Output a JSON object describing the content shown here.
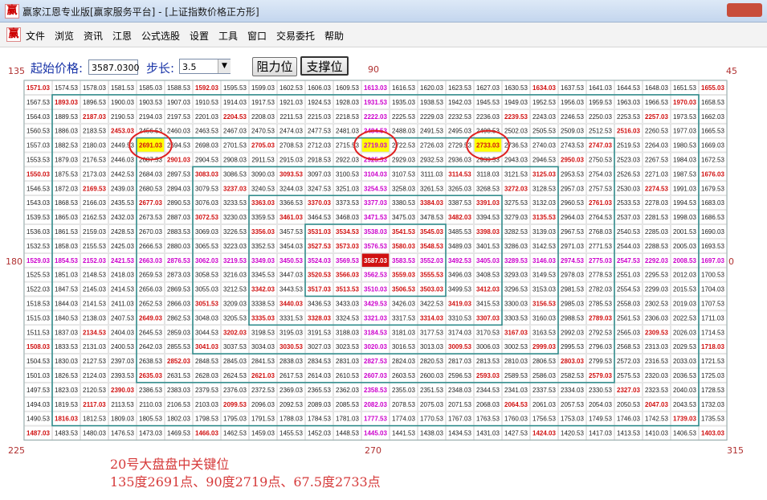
{
  "window": {
    "icon": "赢",
    "title": "赢家江恩专业版[赢家服务平台] - [上证指数价格正方形]"
  },
  "menu": [
    "文件",
    "浏览",
    "资讯",
    "江恩",
    "公式选股",
    "设置",
    "工具",
    "窗口",
    "交易委托",
    "帮助"
  ],
  "toolbar": {
    "start_label": "起始价格:",
    "start_value": "3587.0300",
    "step_label": "步长:",
    "step_value": "3.5",
    "buttons": [
      "阻力位",
      "支撑位"
    ]
  },
  "angle_labels": [
    "135",
    "90",
    "45",
    "180",
    "0",
    "225",
    "270",
    "315"
  ],
  "grid": {
    "rows": [
      [
        1571.03,
        1574.53,
        1578.03,
        1581.53,
        1585.03,
        1588.53,
        1592.03,
        1595.53,
        1599.03,
        1602.53,
        1606.03,
        1609.53,
        1613.03,
        1616.53,
        1620.03,
        1623.53,
        1627.03,
        1630.53,
        1634.03,
        1637.53,
        1641.03,
        1644.53,
        1648.03,
        1651.53,
        1655.03
      ],
      [
        1567.53,
        1893.03,
        1896.53,
        1900.03,
        1903.53,
        1907.03,
        1910.53,
        1914.03,
        1917.53,
        1921.03,
        1924.53,
        1928.03,
        1931.53,
        1935.03,
        1938.53,
        1942.03,
        1945.53,
        1949.03,
        1952.53,
        1956.03,
        1959.53,
        1963.03,
        1966.53,
        1970.03,
        1658.53
      ],
      [
        1564.03,
        1889.53,
        2187.03,
        2190.53,
        2194.03,
        2197.53,
        2201.03,
        2204.53,
        2208.03,
        2211.53,
        2215.03,
        2218.53,
        2222.03,
        2225.53,
        2229.03,
        2232.53,
        2236.03,
        2239.53,
        2243.03,
        2246.53,
        2250.03,
        2253.53,
        2257.03,
        1973.53,
        1662.03
      ],
      [
        1560.53,
        1886.03,
        2183.53,
        2453.03,
        2456.53,
        2460.03,
        2463.53,
        2467.03,
        2470.53,
        2474.03,
        2477.53,
        2481.03,
        2484.53,
        2488.03,
        2491.53,
        2495.03,
        2498.53,
        2502.03,
        2505.53,
        2509.03,
        2512.53,
        2516.03,
        2260.53,
        1977.03,
        1665.53
      ],
      [
        1557.03,
        1882.53,
        2180.03,
        2449.53,
        2691.03,
        2694.53,
        2698.03,
        2701.53,
        2705.03,
        2708.53,
        2712.03,
        2715.53,
        2719.03,
        2722.53,
        2726.03,
        2729.53,
        2733.03,
        2736.53,
        2740.03,
        2743.53,
        2747.03,
        2519.53,
        2264.03,
        1980.53,
        1669.03
      ],
      [
        1553.53,
        1879.03,
        2176.53,
        2446.03,
        2687.53,
        2901.03,
        2904.53,
        2908.03,
        2911.53,
        2915.03,
        2918.53,
        2922.03,
        2925.53,
        2929.03,
        2932.53,
        2936.03,
        2939.53,
        2943.03,
        2946.53,
        2950.03,
        2750.53,
        2523.03,
        2267.53,
        1984.03,
        1672.53
      ],
      [
        1550.03,
        1875.53,
        2173.03,
        2442.53,
        2684.03,
        2897.53,
        3083.03,
        3086.53,
        3090.03,
        3093.53,
        3097.03,
        3100.53,
        3104.03,
        3107.53,
        3111.03,
        3114.53,
        3118.03,
        3121.53,
        3125.03,
        2953.53,
        2754.03,
        2526.53,
        2271.03,
        1987.53,
        1676.03
      ],
      [
        1546.53,
        1872.03,
        2169.53,
        2439.03,
        2680.53,
        2894.03,
        3079.53,
        3237.03,
        3240.53,
        3244.03,
        3247.53,
        3251.03,
        3254.53,
        3258.03,
        3261.53,
        3265.03,
        3268.53,
        3272.03,
        3128.53,
        2957.03,
        2757.53,
        2530.03,
        2274.53,
        1991.03,
        1679.53
      ],
      [
        1543.03,
        1868.53,
        2166.03,
        2435.53,
        2677.03,
        2890.53,
        3076.03,
        3233.53,
        3363.03,
        3366.53,
        3370.03,
        3373.53,
        3377.03,
        3380.53,
        3384.03,
        3387.53,
        3391.03,
        3275.53,
        3132.03,
        2960.53,
        2761.03,
        2533.53,
        2278.03,
        1994.53,
        1683.03
      ],
      [
        1539.53,
        1865.03,
        2162.53,
        2432.03,
        2673.53,
        2887.03,
        3072.53,
        3230.03,
        3359.53,
        3461.03,
        3464.53,
        3468.03,
        3471.53,
        3475.03,
        3478.53,
        3482.03,
        3394.53,
        3279.03,
        3135.53,
        2964.03,
        2764.53,
        2537.03,
        2281.53,
        1998.03,
        1686.53
      ],
      [
        1536.03,
        1861.53,
        2159.03,
        2428.53,
        2670.03,
        2883.53,
        3069.03,
        3226.53,
        3356.03,
        3457.53,
        3531.03,
        3534.53,
        3538.03,
        3541.53,
        3545.03,
        3485.53,
        3398.03,
        3282.53,
        3139.03,
        2967.53,
        2768.03,
        2540.53,
        2285.03,
        2001.53,
        1690.03
      ],
      [
        1532.53,
        1858.03,
        2155.53,
        2425.03,
        2666.53,
        2880.03,
        3065.53,
        3223.03,
        3352.53,
        3454.03,
        3527.53,
        3573.03,
        3576.53,
        3580.03,
        3548.53,
        3489.03,
        3401.53,
        3286.03,
        3142.53,
        2971.03,
        2771.53,
        2544.03,
        2288.53,
        2005.03,
        1693.53
      ],
      [
        1529.03,
        1854.53,
        2152.03,
        2421.53,
        2663.03,
        2876.53,
        3062.03,
        3219.53,
        3349.03,
        3450.53,
        3524.03,
        3569.53,
        3587.03,
        3583.53,
        3552.03,
        3492.53,
        3405.03,
        3289.53,
        3146.03,
        2974.53,
        2775.03,
        2547.53,
        2292.03,
        2008.53,
        1697.03
      ],
      [
        1525.53,
        1851.03,
        2148.53,
        2418.03,
        2659.53,
        2873.03,
        3058.53,
        3216.03,
        3345.53,
        3447.03,
        3520.53,
        3566.03,
        3562.53,
        3559.03,
        3555.53,
        3496.03,
        3408.53,
        3293.03,
        3149.53,
        2978.03,
        2778.53,
        2551.03,
        2295.53,
        2012.03,
        1700.53
      ],
      [
        1522.03,
        1847.53,
        2145.03,
        2414.53,
        2656.03,
        2869.53,
        3055.03,
        3212.53,
        3342.03,
        3443.53,
        3517.03,
        3513.53,
        3510.03,
        3506.53,
        3503.03,
        3499.53,
        3412.03,
        3296.53,
        3153.03,
        2981.53,
        2782.03,
        2554.53,
        2299.03,
        2015.53,
        1704.03
      ],
      [
        1518.53,
        1844.03,
        2141.53,
        2411.03,
        2652.53,
        2866.03,
        3051.53,
        3209.03,
        3338.53,
        3440.03,
        3436.53,
        3433.03,
        3429.53,
        3426.03,
        3422.53,
        3419.03,
        3415.53,
        3300.03,
        3156.53,
        2985.03,
        2785.53,
        2558.03,
        2302.53,
        2019.03,
        1707.53
      ],
      [
        1515.03,
        1840.53,
        2138.03,
        2407.53,
        2649.03,
        2862.53,
        3048.03,
        3205.53,
        3335.03,
        3331.53,
        3328.03,
        3324.53,
        3321.03,
        3317.53,
        3314.03,
        3310.53,
        3307.03,
        3303.53,
        3160.03,
        2988.53,
        2789.03,
        2561.53,
        2306.03,
        2022.53,
        1711.03
      ],
      [
        1511.53,
        1837.03,
        2134.53,
        2404.03,
        2645.53,
        2859.03,
        3044.53,
        3202.03,
        3198.53,
        3195.03,
        3191.53,
        3188.03,
        3184.53,
        3181.03,
        3177.53,
        3174.03,
        3170.53,
        3167.03,
        3163.53,
        2992.03,
        2792.53,
        2565.03,
        2309.53,
        2026.03,
        1714.53
      ],
      [
        1508.03,
        1833.53,
        2131.03,
        2400.53,
        2642.03,
        2855.53,
        3041.03,
        3037.53,
        3034.03,
        3030.53,
        3027.03,
        3023.53,
        3020.03,
        3016.53,
        3013.03,
        3009.53,
        3006.03,
        3002.53,
        2999.03,
        2995.53,
        2796.03,
        2568.53,
        2313.03,
        2029.53,
        1718.03
      ],
      [
        1504.53,
        1830.03,
        2127.53,
        2397.03,
        2638.53,
        2852.03,
        2848.53,
        2845.03,
        2841.53,
        2838.03,
        2834.53,
        2831.03,
        2827.53,
        2824.03,
        2820.53,
        2817.03,
        2813.53,
        2810.03,
        2806.53,
        2803.03,
        2799.53,
        2572.03,
        2316.53,
        2033.03,
        1721.53
      ],
      [
        1501.03,
        1826.53,
        2124.03,
        2393.53,
        2635.03,
        2631.53,
        2628.03,
        2624.53,
        2621.03,
        2617.53,
        2614.03,
        2610.53,
        2607.03,
        2603.53,
        2600.03,
        2596.53,
        2593.03,
        2589.53,
        2586.03,
        2582.53,
        2579.03,
        2575.53,
        2320.03,
        2036.53,
        1725.03
      ],
      [
        1497.53,
        1823.03,
        2120.53,
        2390.03,
        2386.53,
        2383.03,
        2379.53,
        2376.03,
        2372.53,
        2369.03,
        2365.53,
        2362.03,
        2358.53,
        2355.03,
        2351.53,
        2348.03,
        2344.53,
        2341.03,
        2337.53,
        2334.03,
        2330.53,
        2327.03,
        2323.53,
        2040.03,
        1728.53
      ],
      [
        1494.03,
        1819.53,
        2117.03,
        2113.53,
        2110.03,
        2106.53,
        2103.03,
        2099.53,
        2096.03,
        2092.53,
        2089.03,
        2085.53,
        2082.03,
        2078.53,
        2075.03,
        2071.53,
        2068.03,
        2064.53,
        2061.03,
        2057.53,
        2054.03,
        2050.53,
        2047.03,
        2043.53,
        1732.03
      ],
      [
        1490.53,
        1816.03,
        1812.53,
        1809.03,
        1805.53,
        1802.03,
        1798.53,
        1795.03,
        1791.53,
        1788.03,
        1784.53,
        1781.03,
        1777.53,
        1774.03,
        1770.53,
        1767.03,
        1763.53,
        1760.03,
        1756.53,
        1753.03,
        1749.53,
        1746.03,
        1742.53,
        1739.03,
        1735.53
      ],
      [
        1487.03,
        1483.53,
        1480.03,
        1476.53,
        1473.03,
        1469.53,
        1466.03,
        1462.53,
        1459.03,
        1455.53,
        1452.03,
        1448.53,
        1445.03,
        1441.53,
        1438.03,
        1434.53,
        1431.03,
        1427.53,
        1424.03,
        1420.53,
        1417.03,
        1413.53,
        1410.03,
        1406.53,
        1403.03
      ]
    ]
  },
  "notes": [
    "20号大盘盘中关键位",
    "135度2691点、90度2719点、67.5度2733点"
  ]
}
